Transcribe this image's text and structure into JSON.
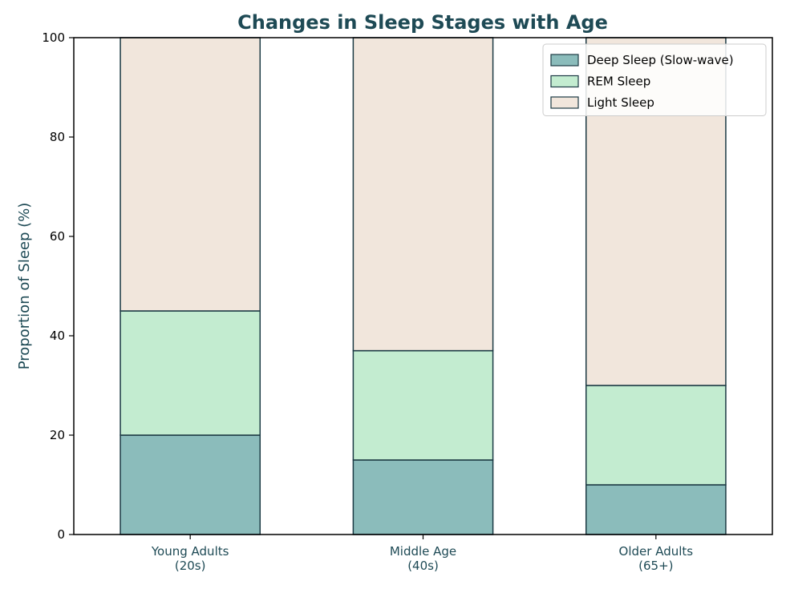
{
  "chart_data": {
    "type": "bar",
    "stacked": true,
    "title": "Changes in Sleep Stages with Age",
    "xlabel": "",
    "ylabel": "Proportion of Sleep (%)",
    "ylim": [
      0,
      100
    ],
    "yticks": [
      0,
      20,
      40,
      60,
      80,
      100
    ],
    "grid": false,
    "legend_position": "top-right",
    "categories": [
      [
        "Young Adults",
        "(20s)"
      ],
      [
        "Middle Age",
        "(40s)"
      ],
      [
        "Older Adults",
        "(65+)"
      ]
    ],
    "series": [
      {
        "name": "Deep Sleep (Slow-wave)",
        "values": [
          20,
          15,
          10
        ],
        "color": "#8bbcbb"
      },
      {
        "name": "REM Sleep",
        "values": [
          25,
          22,
          20
        ],
        "color": "#c3ecd0"
      },
      {
        "name": "Light Sleep",
        "values": [
          55,
          63,
          70
        ],
        "color": "#f1e6dc"
      }
    ],
    "edge_color": "#1c3a44"
  }
}
